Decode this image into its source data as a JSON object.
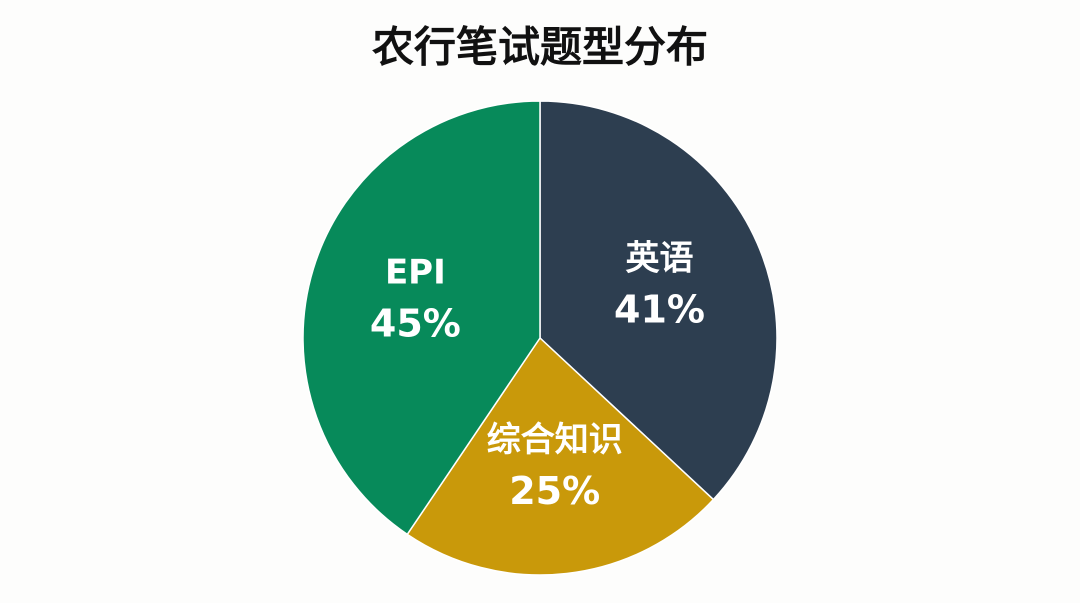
{
  "chart_data": {
    "type": "pie",
    "title": "农行笔试题型分布",
    "categories": [
      "英语",
      "综合知识",
      "EPI"
    ],
    "values": [
      41,
      25,
      45
    ],
    "value_labels": [
      "41%",
      "25%",
      "45%"
    ],
    "colors": [
      "#2d3e50",
      "#c9990a",
      "#078a5a"
    ]
  }
}
